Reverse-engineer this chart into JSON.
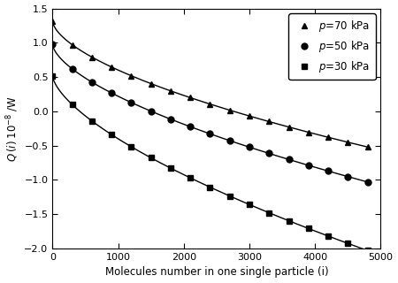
{
  "title": "",
  "xlabel": "Molecules number in one single particle (i)",
  "xlim": [
    0,
    5000
  ],
  "ylim": [
    -2.0,
    1.5
  ],
  "xticks": [
    0,
    1000,
    2000,
    3000,
    4000,
    5000
  ],
  "yticks": [
    -2.0,
    -1.5,
    -1.0,
    -0.5,
    0.0,
    0.5,
    1.0,
    1.5
  ],
  "series": [
    {
      "label": "p=70 kPa",
      "start": 1.32,
      "end": -0.52,
      "curve_power": 0.6,
      "marker": "^",
      "n_markers": 17
    },
    {
      "label": "p=50 kPa",
      "start": 0.98,
      "end": -1.03,
      "curve_power": 0.62,
      "marker": "o",
      "n_markers": 17
    },
    {
      "label": "p=30 kPa",
      "start": 0.52,
      "end": -2.03,
      "curve_power": 0.65,
      "marker": "s",
      "n_markers": 17
    }
  ],
  "n_points": 400,
  "x_end": 4800,
  "legend_loc": "upper right",
  "background_color": "#ffffff",
  "line_color": "#000000",
  "marker_size": 5,
  "line_width": 1.0
}
